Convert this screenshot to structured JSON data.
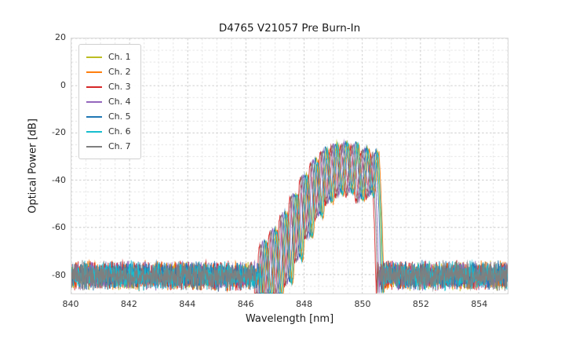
{
  "figure": {
    "title": "D4765 V21057 Pre Burn-In",
    "xlabel": "Wavelength [nm]",
    "ylabel": "Optical Power [dB]"
  },
  "chart_data": {
    "type": "line",
    "title": "D4765 V21057 Pre Burn-In",
    "xlabel": "Wavelength [nm]",
    "ylabel": "Optical Power [dB]",
    "xlim": [
      840,
      855
    ],
    "ylim": [
      -88,
      20
    ],
    "x_ticks": [
      840,
      842,
      844,
      846,
      848,
      850,
      852,
      854
    ],
    "y_ticks": [
      20,
      0,
      -20,
      -40,
      -60,
      -80
    ],
    "grid": {
      "on": true,
      "x_minor_step_nm": 0.5,
      "y_minor_step_db": 5
    },
    "legend_position": "upper left",
    "noise_floor_db": -80.5,
    "noise_amplitude_db": 6.8,
    "signal_range_nm": [
      846.45,
      850.65
    ],
    "mode_structure": {
      "spacing_nm": 0.35,
      "phase_ref_nm": 846.62,
      "envelope_points": [
        [
          846.45,
          -82
        ],
        [
          846.62,
          -66
        ],
        [
          846.97,
          -61
        ],
        [
          847.32,
          -54
        ],
        [
          847.67,
          -46
        ],
        [
          848.02,
          -38
        ],
        [
          848.37,
          -31.5
        ],
        [
          848.72,
          -27
        ],
        [
          849.07,
          -24.8
        ],
        [
          849.42,
          -24.2
        ],
        [
          849.77,
          -24.8
        ],
        [
          850.02,
          -27.5
        ],
        [
          850.25,
          -26
        ],
        [
          850.47,
          -28
        ],
        [
          850.58,
          -50
        ],
        [
          850.65,
          -80
        ]
      ],
      "dip_depth_points": [
        [
          846.4,
          24
        ],
        [
          847.3,
          34
        ],
        [
          848.0,
          30
        ],
        [
          848.7,
          24
        ],
        [
          849.4,
          20
        ],
        [
          850.1,
          21
        ],
        [
          850.45,
          18
        ],
        [
          850.65,
          10
        ]
      ]
    },
    "series": [
      {
        "name": "Ch. 1",
        "color": "#bcbd22",
        "shift_nm": 0.05,
        "offset_db": 0.0,
        "seed": 101
      },
      {
        "name": "Ch. 2",
        "color": "#ff7f0e",
        "shift_nm": 0.11,
        "offset_db": -0.8,
        "seed": 202
      },
      {
        "name": "Ch. 3",
        "color": "#d62728",
        "shift_nm": -0.16,
        "offset_db": -1.5,
        "seed": 303
      },
      {
        "name": "Ch. 4",
        "color": "#9467bd",
        "shift_nm": -0.06,
        "offset_db": -0.4,
        "seed": 404
      },
      {
        "name": "Ch. 5",
        "color": "#1f77b4",
        "shift_nm": 0.01,
        "offset_db": 0.3,
        "seed": 505
      },
      {
        "name": "Ch. 6",
        "color": "#17becf",
        "shift_nm": 0.08,
        "offset_db": -0.6,
        "seed": 606
      },
      {
        "name": "Ch. 7",
        "color": "#7f7f7f",
        "shift_nm": -0.11,
        "offset_db": -1.0,
        "seed": 707
      }
    ]
  }
}
